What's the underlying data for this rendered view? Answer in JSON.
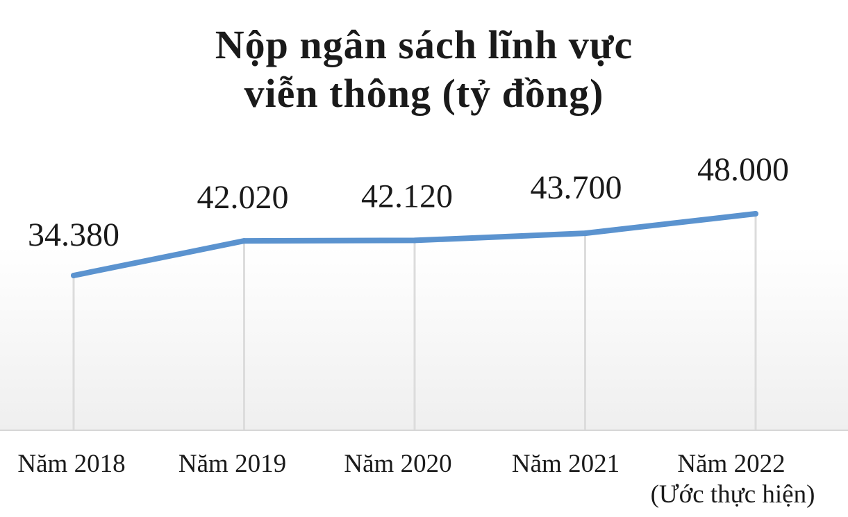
{
  "chart_data": {
    "type": "line",
    "title_lines": [
      "Nộp ngân sách lĩnh vực",
      "viễn thông (tỷ đồng)"
    ],
    "categories": [
      [
        "Năm 2018"
      ],
      [
        "Năm 2019"
      ],
      [
        "Năm 2020"
      ],
      [
        "Năm 2021"
      ],
      [
        "Năm 2022",
        "(Ước thực hiện)"
      ]
    ],
    "series": [
      {
        "values": [
          34380,
          42020,
          42120,
          43700,
          48000
        ],
        "value_labels": [
          "34.380",
          "42.020",
          "42.120",
          "43.700",
          "48.000"
        ],
        "color": "#5b93cf"
      }
    ],
    "ylim": [
      0,
      48000
    ],
    "grid": "vertical",
    "legend": "none",
    "plot_gradient": [
      "#ffffff",
      "#efefef"
    ]
  }
}
